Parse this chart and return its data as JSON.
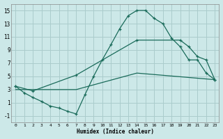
{
  "xlabel": "Humidex (Indice chaleur)",
  "bg_color": "#cce8e8",
  "grid_color": "#aacccc",
  "line_color": "#1a6b5a",
  "xlim": [
    -0.5,
    23.5
  ],
  "ylim": [
    -2,
    16
  ],
  "xticks": [
    0,
    1,
    2,
    3,
    4,
    5,
    6,
    7,
    8,
    9,
    10,
    11,
    12,
    13,
    14,
    15,
    16,
    17,
    18,
    19,
    20,
    21,
    22,
    23
  ],
  "yticks": [
    -1,
    1,
    3,
    5,
    7,
    9,
    11,
    13,
    15
  ],
  "curve1_x": [
    0,
    1,
    2,
    3,
    4,
    5,
    6,
    7,
    8,
    9,
    10,
    11,
    12,
    13,
    14,
    15,
    16,
    17,
    18,
    19,
    20,
    21,
    22,
    23
  ],
  "curve1_y": [
    3.5,
    2.5,
    1.8,
    1.2,
    0.5,
    0.2,
    -0.3,
    -0.7,
    2.2,
    5.0,
    7.5,
    9.8,
    12.2,
    14.2,
    15.0,
    15.0,
    13.8,
    13.0,
    10.8,
    9.5,
    7.5,
    7.5,
    5.5,
    4.5
  ],
  "curve2_x": [
    0,
    2,
    7,
    14,
    19,
    20,
    21,
    22,
    23
  ],
  "curve2_y": [
    3.5,
    2.8,
    5.2,
    10.5,
    10.5,
    9.5,
    8.0,
    7.5,
    4.5
  ],
  "curve3_x": [
    0,
    7,
    14,
    23
  ],
  "curve3_y": [
    3.0,
    3.0,
    5.5,
    4.5
  ]
}
